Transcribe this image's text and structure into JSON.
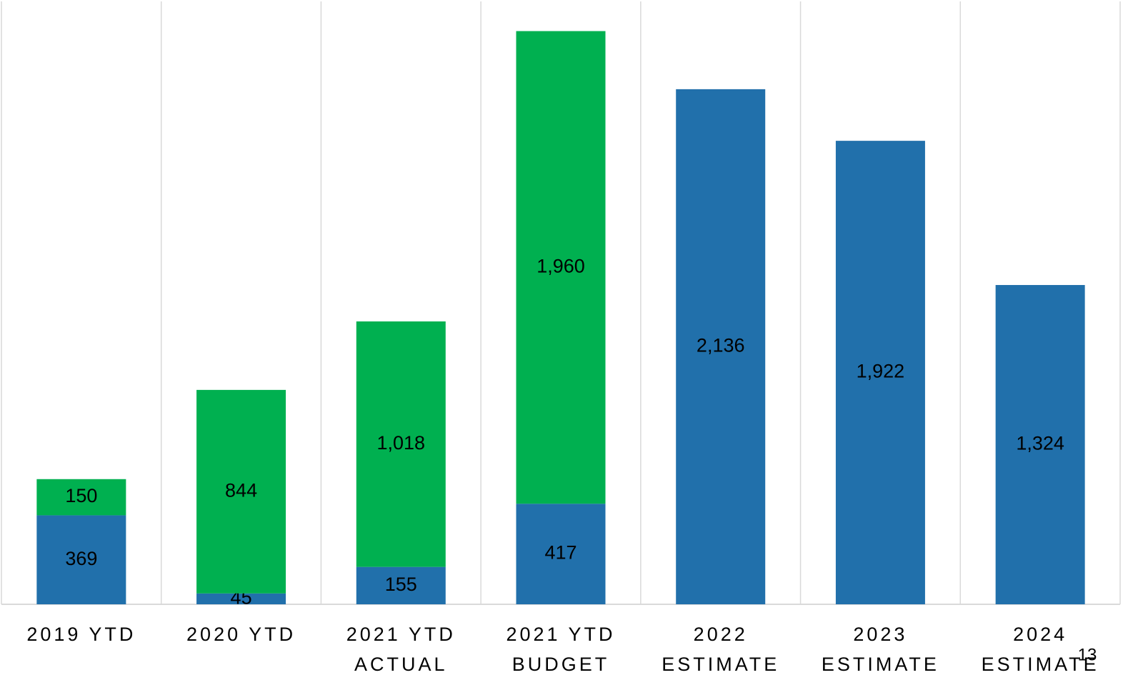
{
  "chart_data": {
    "type": "stacked_bar",
    "categories": [
      [
        "2019 YTD"
      ],
      [
        "2020 YTD"
      ],
      [
        "2021 YTD",
        "ACTUAL"
      ],
      [
        "2021 YTD",
        "BUDGET"
      ],
      [
        "2022",
        "ESTIMATE"
      ],
      [
        "2023",
        "ESTIMATE"
      ],
      [
        "2024",
        "ESTIMATE"
      ]
    ],
    "series": [
      {
        "color": "#2170ab",
        "values": [
          369,
          45,
          155,
          417,
          2136,
          1922,
          1324
        ],
        "value_labels": [
          "369",
          "45",
          "155",
          "417",
          "2,136",
          "1,922",
          "1,324"
        ]
      },
      {
        "color": "#00b050",
        "values": [
          150,
          844,
          1018,
          1960,
          null,
          null,
          null
        ],
        "value_labels": [
          "150",
          "844",
          "1,018",
          "1,960",
          null,
          null,
          null
        ]
      }
    ],
    "ylim": [
      0,
      2500
    ],
    "page_number": "13"
  }
}
